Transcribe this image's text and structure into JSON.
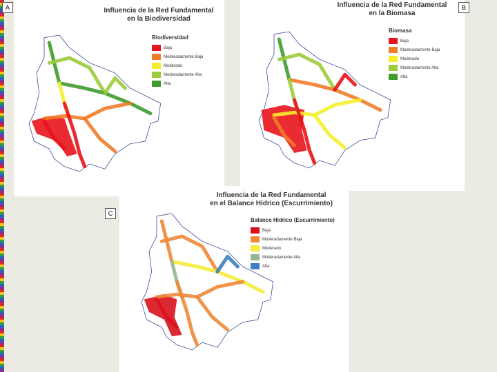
{
  "panels": [
    {
      "label": "A",
      "title": [
        "Influencia de la Red Fundamental",
        "en la Biodiversidad"
      ],
      "legend": {
        "title": "Biodiversidad",
        "items": [
          {
            "label": "Baja",
            "color": "#e8141b"
          },
          {
            "label": "Moderadamente Baja",
            "color": "#f07c2a"
          },
          {
            "label": "Moderado",
            "color": "#f5ee2b"
          },
          {
            "label": "Moderadamente Alta",
            "color": "#9ccc3c"
          },
          {
            "label": "Alta",
            "color": "#3f9c2c"
          }
        ]
      }
    },
    {
      "label": "B",
      "title": [
        "Influencia de la Red Fundamental",
        "en la Biomasa"
      ],
      "legend": {
        "title": "Biomasa",
        "items": [
          {
            "label": "Baja",
            "color": "#e8141b"
          },
          {
            "label": "Moderadamente Baja",
            "color": "#f07c2a"
          },
          {
            "label": "Moderado",
            "color": "#f5ee2b"
          },
          {
            "label": "Moderadamente Alta",
            "color": "#9ccc3c"
          },
          {
            "label": "Alta",
            "color": "#3f9c2c"
          }
        ]
      }
    },
    {
      "label": "C",
      "title": [
        "Influencia de la Red Fundamental",
        "en el Balance Hídrico (Escurrimiento)"
      ],
      "legend": {
        "title": "Balance Hídrico (Escurrimiento)",
        "items": [
          {
            "label": "Baja",
            "color": "#d8111d"
          },
          {
            "label": "Moderadamente Baja",
            "color": "#ee8a3a"
          },
          {
            "label": "Moderado",
            "color": "#f4ec3a"
          },
          {
            "label": "Moderadamente Alta",
            "color": "#93b592"
          },
          {
            "label": "Alta",
            "color": "#3d7fc0"
          }
        ]
      }
    }
  ]
}
